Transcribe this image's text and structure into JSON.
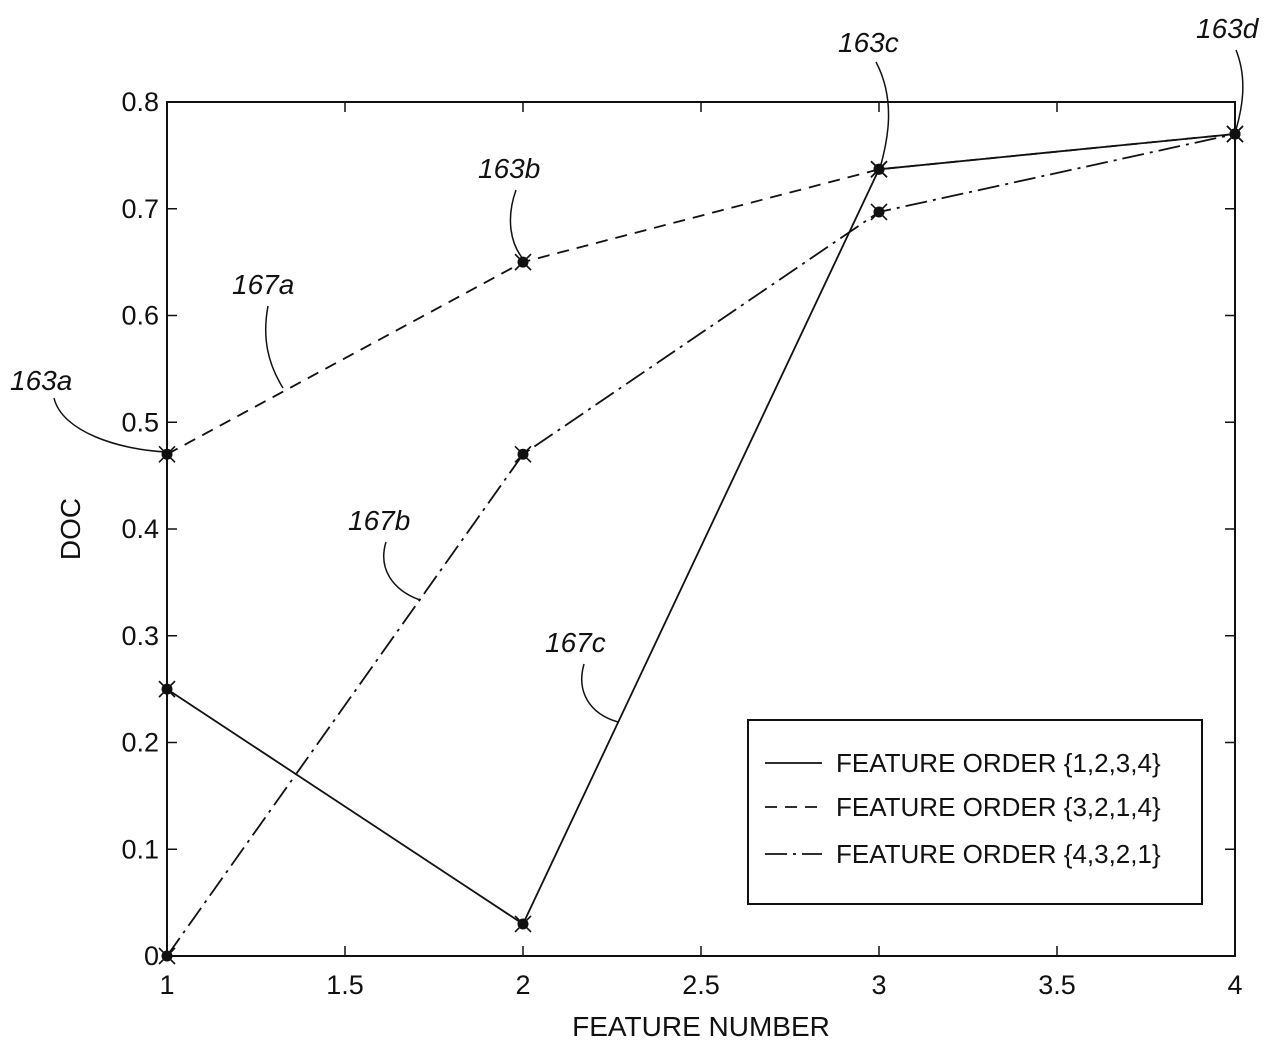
{
  "chart_data": {
    "type": "line",
    "title": "",
    "xlabel": "FEATURE NUMBER",
    "ylabel": "DOC",
    "xlim": [
      1,
      4
    ],
    "ylim": [
      0,
      0.8
    ],
    "grid": false,
    "x_ticks": [
      "1",
      "1.5",
      "2",
      "2.5",
      "3",
      "3.5",
      "4"
    ],
    "y_ticks": [
      "0",
      "0.1",
      "0.2",
      "0.3",
      "0.4",
      "0.5",
      "0.6",
      "0.7",
      "0.8"
    ],
    "legend_position": "bottom-right",
    "x": [
      1,
      2,
      3,
      4
    ],
    "series": [
      {
        "name": "FEATURE ORDER {1,2,3,4}",
        "line_style": "solid",
        "values": [
          0.25,
          0.03,
          0.737,
          0.77
        ]
      },
      {
        "name": "FEATURE ORDER {3,2,1,4}",
        "line_style": "dashed",
        "values": [
          0.47,
          0.65,
          0.737,
          0.77
        ]
      },
      {
        "name": "FEATURE ORDER {4,3,2,1}",
        "line_style": "dash-dot",
        "values": [
          0.0,
          0.47,
          0.697,
          0.77
        ]
      }
    ],
    "annotations": [
      {
        "text": "163a",
        "x": 1,
        "y": 0.47
      },
      {
        "text": "163b",
        "x": 2,
        "y": 0.65
      },
      {
        "text": "163c",
        "x": 3,
        "y": 0.737
      },
      {
        "text": "163d",
        "x": 4,
        "y": 0.77
      },
      {
        "text": "167a",
        "x": 1.35,
        "y": 0.53
      },
      {
        "text": "167b",
        "x": 1.71,
        "y": 0.335
      },
      {
        "text": "167c",
        "x": 2.26,
        "y": 0.22
      }
    ]
  }
}
